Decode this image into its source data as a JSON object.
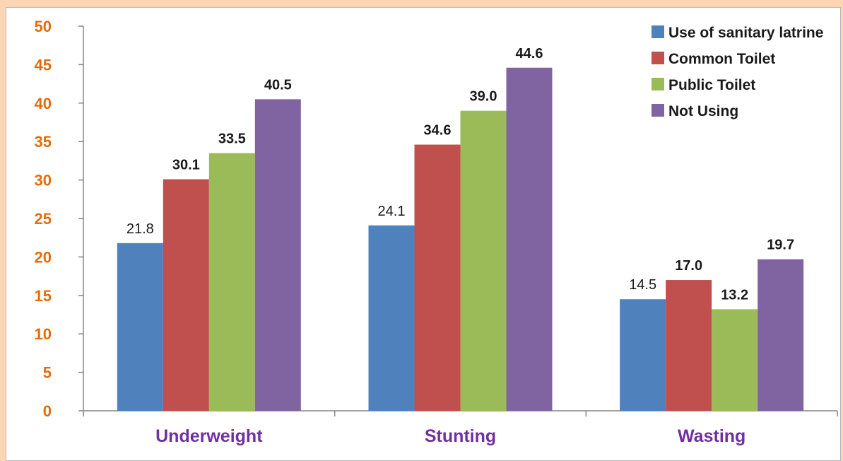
{
  "chart_data": {
    "type": "bar",
    "title": "",
    "xlabel": "",
    "ylabel": "",
    "ylim": [
      0,
      50
    ],
    "yticks": [
      0,
      5,
      10,
      15,
      20,
      25,
      30,
      35,
      40,
      45,
      50
    ],
    "grid": false,
    "legend_position": "top-right",
    "categories": [
      "Underweight",
      "Stunting",
      "Wasting"
    ],
    "series": [
      {
        "name": "Use of sanitary latrine",
        "color": "#4f81bd",
        "values": [
          21.8,
          24.1,
          14.5
        ],
        "labels": [
          "21.8",
          "24.1",
          "14.5"
        ],
        "label_bold": false
      },
      {
        "name": "Common Toilet",
        "color": "#c0504d",
        "values": [
          30.1,
          34.6,
          17.0
        ],
        "labels": [
          "30.1",
          "34.6",
          "17.0"
        ],
        "label_bold": true
      },
      {
        "name": "Public Toilet",
        "color": "#9bbb59",
        "values": [
          33.5,
          39.0,
          13.2
        ],
        "labels": [
          "33.5",
          "39.0",
          "13.2"
        ],
        "label_bold": true
      },
      {
        "name": "Not Using",
        "color": "#8064a2",
        "values": [
          40.5,
          44.6,
          19.7
        ],
        "labels": [
          "40.5",
          "44.6",
          "19.7"
        ],
        "label_bold": true
      }
    ],
    "colors": {
      "ytick": "#e46c0a",
      "category": "#7030a0",
      "axis": "#868686",
      "background": "#fbd5b4"
    }
  }
}
